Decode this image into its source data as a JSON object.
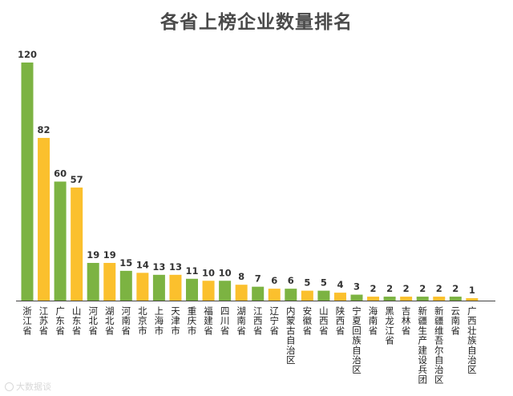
{
  "title": "各省上榜企业数量排名",
  "watermark": "大数据谈",
  "colors": {
    "green": "#7cb342",
    "yellow": "#fbc02d",
    "axis": "#444444"
  },
  "chart_data": {
    "type": "bar",
    "title": "各省上榜企业数量排名",
    "xlabel": "",
    "ylabel": "",
    "ylim": [
      0,
      120
    ],
    "grid": false,
    "legend": "none",
    "categories": [
      "浙江省",
      "江苏省",
      "广东省",
      "山东省",
      "河北省",
      "湖北省",
      "河南省",
      "北京市",
      "上海市",
      "天津市",
      "重庆市",
      "福建省",
      "四川省",
      "湖南省",
      "江西省",
      "辽宁省",
      "内蒙古自治区",
      "安徽省",
      "山西省",
      "陕西省",
      "宁夏回族自治区",
      "海南省",
      "黑龙江省",
      "吉林省",
      "新疆生产建设兵团",
      "新疆维吾尔自治区",
      "云南省",
      "广西壮族自治区"
    ],
    "values": [
      120,
      82,
      60,
      57,
      19,
      19,
      15,
      14,
      13,
      13,
      11,
      10,
      10,
      8,
      7,
      6,
      6,
      5,
      5,
      4,
      3,
      2,
      2,
      2,
      2,
      2,
      2,
      1
    ],
    "bar_colors": [
      "green",
      "yellow",
      "green",
      "yellow",
      "green",
      "yellow",
      "green",
      "yellow",
      "green",
      "yellow",
      "green",
      "yellow",
      "green",
      "yellow",
      "green",
      "yellow",
      "green",
      "yellow",
      "green",
      "yellow",
      "green",
      "yellow",
      "green",
      "yellow",
      "green",
      "yellow",
      "green",
      "yellow"
    ]
  }
}
